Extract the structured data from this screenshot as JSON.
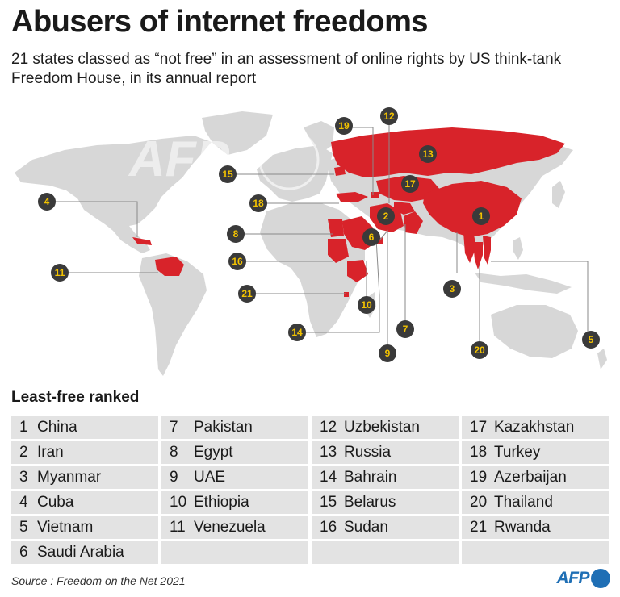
{
  "title": "Abusers of internet freedoms",
  "subtitle": "21 states classed as “not free” in an assessment of online rights by US think-tank Freedom House, in its annual report",
  "colors": {
    "not_free": "#d8232a",
    "land": "#d7d7d7",
    "badge_fill": "#3a3a3a",
    "badge_text": "#f3c300",
    "table_cell": "#e3e3e3",
    "brand_blue": "#1f6fb5"
  },
  "watermark": "AFP",
  "map": {
    "badges": [
      "1",
      "2",
      "3",
      "4",
      "5",
      "6",
      "7",
      "8",
      "9",
      "10",
      "11",
      "12",
      "13",
      "14",
      "15",
      "16",
      "17",
      "18",
      "19",
      "20",
      "21"
    ]
  },
  "ranked": {
    "heading": "Least-free ranked",
    "items": [
      {
        "rank": "1",
        "country": "China"
      },
      {
        "rank": "2",
        "country": "Iran"
      },
      {
        "rank": "3",
        "country": "Myanmar"
      },
      {
        "rank": "4",
        "country": "Cuba"
      },
      {
        "rank": "5",
        "country": "Vietnam"
      },
      {
        "rank": "6",
        "country": "Saudi Arabia"
      },
      {
        "rank": "7",
        "country": "Pakistan"
      },
      {
        "rank": "8",
        "country": "Egypt"
      },
      {
        "rank": "9",
        "country": "UAE"
      },
      {
        "rank": "10",
        "country": "Ethiopia"
      },
      {
        "rank": "11",
        "country": "Venezuela"
      },
      {
        "rank": "12",
        "country": "Uzbekistan"
      },
      {
        "rank": "13",
        "country": "Russia"
      },
      {
        "rank": "14",
        "country": "Bahrain"
      },
      {
        "rank": "15",
        "country": "Belarus"
      },
      {
        "rank": "16",
        "country": "Sudan"
      },
      {
        "rank": "17",
        "country": "Kazakhstan"
      },
      {
        "rank": "18",
        "country": "Turkey"
      },
      {
        "rank": "19",
        "country": "Azerbaijan"
      },
      {
        "rank": "20",
        "country": "Thailand"
      },
      {
        "rank": "21",
        "country": "Rwanda"
      }
    ]
  },
  "source": "Source : Freedom on the Net 2021",
  "logo": {
    "text": "AFP"
  }
}
